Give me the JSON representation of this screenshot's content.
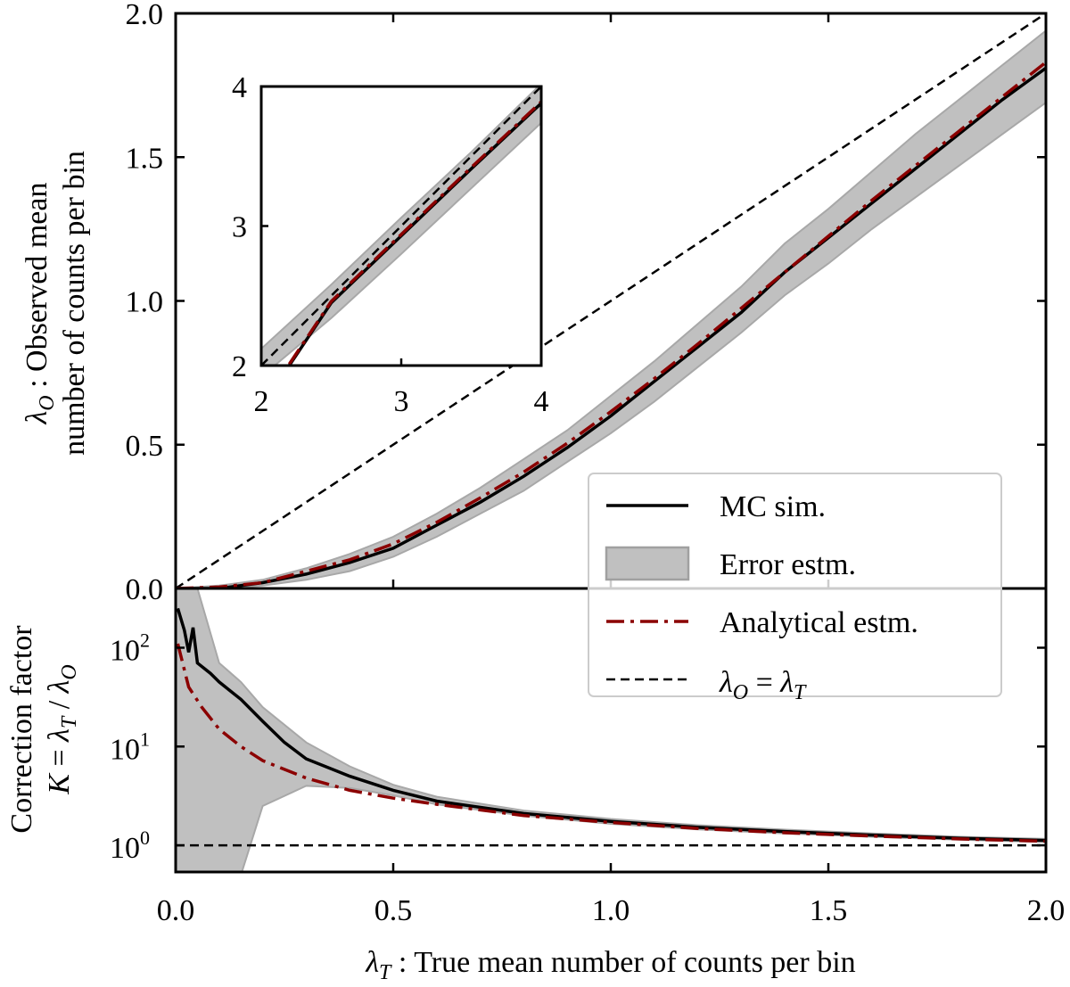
{
  "chart_data": [
    {
      "panel": "main",
      "type": "line",
      "ylabel_lines": [
        "λ_O : Observed mean",
        "number of counts per bin"
      ],
      "xlim": [
        0.0,
        2.0
      ],
      "ylim": [
        0.0,
        2.0
      ],
      "xscale": "linear",
      "yscale": "linear",
      "xticks": [
        "0.0",
        "0.5",
        "1.0",
        "1.5",
        "2.0"
      ],
      "yticks": [
        "0.0",
        "0.5",
        "1.0",
        "1.5",
        "2.0"
      ],
      "grid": false,
      "legend_position": "lower right",
      "series": [
        {
          "name": "MC sim.",
          "style": "solid",
          "color": "#000000",
          "x": [
            0.0,
            0.1,
            0.2,
            0.3,
            0.4,
            0.5,
            0.6,
            0.7,
            0.8,
            0.9,
            1.0,
            1.1,
            1.2,
            1.3,
            1.4,
            1.5,
            1.6,
            1.7,
            1.8,
            1.9,
            2.0
          ],
          "y": [
            0.0,
            0.0,
            0.02,
            0.05,
            0.09,
            0.14,
            0.22,
            0.3,
            0.39,
            0.49,
            0.6,
            0.72,
            0.84,
            0.96,
            1.1,
            1.22,
            1.34,
            1.46,
            1.58,
            1.7,
            1.81
          ]
        },
        {
          "name": "Error estm.",
          "style": "band",
          "color": "#c0c0c0",
          "x": [
            0.0,
            0.1,
            0.2,
            0.3,
            0.4,
            0.5,
            0.6,
            0.7,
            0.8,
            0.9,
            1.0,
            1.1,
            1.2,
            1.3,
            1.4,
            1.5,
            1.6,
            1.7,
            1.8,
            1.9,
            2.0
          ],
          "lower": [
            0.0,
            0.0,
            0.01,
            0.03,
            0.06,
            0.11,
            0.18,
            0.26,
            0.34,
            0.44,
            0.54,
            0.65,
            0.77,
            0.89,
            1.02,
            1.13,
            1.25,
            1.36,
            1.47,
            1.58,
            1.69
          ],
          "upper": [
            0.0,
            0.01,
            0.03,
            0.07,
            0.12,
            0.18,
            0.26,
            0.35,
            0.45,
            0.55,
            0.67,
            0.79,
            0.92,
            1.05,
            1.2,
            1.32,
            1.45,
            1.58,
            1.7,
            1.82,
            1.94
          ]
        },
        {
          "name": "Analytical estm.",
          "style": "dashdot",
          "color": "#8b0000",
          "x": [
            0.0,
            0.1,
            0.2,
            0.3,
            0.4,
            0.5,
            0.6,
            0.7,
            0.8,
            0.9,
            1.0,
            1.1,
            1.2,
            1.3,
            1.4,
            1.5,
            1.6,
            1.7,
            1.8,
            1.9,
            2.0
          ],
          "y": [
            0.0,
            0.005,
            0.02,
            0.06,
            0.1,
            0.155,
            0.23,
            0.315,
            0.405,
            0.505,
            0.615,
            0.73,
            0.85,
            0.975,
            1.1,
            1.225,
            1.35,
            1.47,
            1.59,
            1.71,
            1.83
          ]
        },
        {
          "name": "λ_O = λ_T",
          "style": "dashed",
          "color": "#000000",
          "x": [
            0.0,
            2.0
          ],
          "y": [
            0.0,
            2.0
          ]
        }
      ]
    },
    {
      "panel": "inset",
      "type": "line",
      "xlim": [
        2,
        4
      ],
      "ylim": [
        2,
        4
      ],
      "xticks": [
        "2",
        "3",
        "4"
      ],
      "yticks": [
        "2",
        "3",
        "4"
      ],
      "series": [
        {
          "role": "band",
          "x": [
            2.0,
            2.5,
            3.0,
            3.5,
            4.0
          ],
          "lower": [
            1.92,
            2.34,
            2.8,
            3.27,
            3.74
          ],
          "upper": [
            2.12,
            2.58,
            3.06,
            3.53,
            4.02
          ]
        },
        {
          "role": "mc",
          "x": [
            2.2,
            2.5,
            3.0,
            3.5,
            4.0
          ],
          "y": [
            2.0,
            2.45,
            2.93,
            3.41,
            3.88
          ]
        },
        {
          "role": "analytical",
          "x": [
            2.2,
            2.5,
            3.0,
            3.5,
            4.0
          ],
          "y": [
            2.01,
            2.46,
            2.94,
            3.42,
            3.89
          ]
        },
        {
          "role": "identity",
          "x": [
            2.0,
            4.0
          ],
          "y": [
            2.0,
            4.0
          ]
        }
      ]
    },
    {
      "panel": "bottom",
      "type": "line",
      "xlabel": "λ_T : True mean number of counts per bin",
      "ylabel_lines": [
        "Correction factor",
        "K = λ_T / λ_O"
      ],
      "xlim": [
        0.0,
        2.0
      ],
      "ylim_log10": [
        -0.27,
        2.6
      ],
      "yscale": "log",
      "xticks": [
        "0.0",
        "0.5",
        "1.0",
        "1.5",
        "2.0"
      ],
      "ytick_exponents": [
        "0",
        "1",
        "2"
      ],
      "series": [
        {
          "role": "mc",
          "x": [
            0.005,
            0.02,
            0.03,
            0.04,
            0.05,
            0.08,
            0.1,
            0.15,
            0.2,
            0.25,
            0.3,
            0.4,
            0.5,
            0.6,
            0.8,
            1.0,
            1.2,
            1.4,
            1.6,
            1.8,
            2.0
          ],
          "y": [
            250,
            150,
            90,
            160,
            70,
            55,
            45,
            30,
            18,
            11,
            7.5,
            5,
            3.6,
            2.8,
            2.1,
            1.75,
            1.52,
            1.38,
            1.27,
            1.18,
            1.12
          ]
        },
        {
          "role": "band",
          "x": [
            0.0,
            0.05,
            0.1,
            0.15,
            0.2,
            0.3,
            0.4,
            0.5,
            0.6,
            0.8,
            1.0,
            1.2,
            1.4,
            1.6,
            1.8,
            2.0
          ],
          "lower": [
            0.5,
            0.5,
            0.5,
            0.5,
            2.5,
            4.0,
            3.8,
            3.2,
            2.6,
            2.0,
            1.65,
            1.45,
            1.32,
            1.22,
            1.14,
            1.08
          ],
          "upper": [
            400,
            400,
            70,
            45,
            25,
            11,
            6.3,
            4.1,
            3.1,
            2.25,
            1.85,
            1.6,
            1.44,
            1.32,
            1.22,
            1.16
          ]
        },
        {
          "role": "analytical",
          "x": [
            0.005,
            0.03,
            0.06,
            0.1,
            0.15,
            0.2,
            0.3,
            0.4,
            0.5,
            0.6,
            0.8,
            1.0,
            1.2,
            1.4,
            1.6,
            1.8,
            2.0
          ],
          "y": [
            110,
            40,
            25,
            15,
            10,
            7.2,
            4.8,
            3.6,
            3.0,
            2.6,
            2.0,
            1.7,
            1.48,
            1.34,
            1.24,
            1.16,
            1.1
          ]
        },
        {
          "role": "identity",
          "x": [
            0.0,
            2.0
          ],
          "y": [
            1.0,
            1.0
          ]
        }
      ]
    }
  ]
}
